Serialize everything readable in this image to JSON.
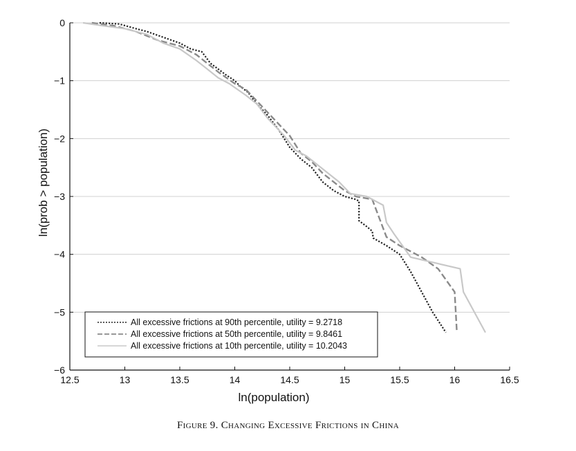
{
  "chart_data": {
    "type": "line",
    "xlabel": "ln(population)",
    "ylabel": "ln(prob > population)",
    "xlim": [
      12.5,
      16.5
    ],
    "ylim": [
      -6,
      0
    ],
    "xticks": [
      "12.5",
      "13",
      "13.5",
      "14",
      "14.5",
      "15",
      "15.5",
      "16",
      "16.5"
    ],
    "xtick_values": [
      12.5,
      13,
      13.5,
      14,
      14.5,
      15,
      15.5,
      16,
      16.5
    ],
    "yticks": [
      "0",
      "−1",
      "−2",
      "−3",
      "−4",
      "−5",
      "−6"
    ],
    "ytick_values": [
      0,
      -1,
      -2,
      -3,
      -4,
      -5,
      -6
    ],
    "grid": "horizontal",
    "legend_position": "bottom-left",
    "series": [
      {
        "name": "All excessive frictions at 90th percentile, utility = 9.2718",
        "style": "dotted",
        "color": "#222222",
        "x": [
          12.77,
          12.95,
          13.1,
          13.2,
          13.35,
          13.5,
          13.6,
          13.7,
          13.78,
          13.85,
          13.92,
          14.0,
          14.05,
          14.12,
          14.2,
          14.3,
          14.4,
          14.5,
          14.6,
          14.7,
          14.8,
          14.9,
          15.0,
          15.1,
          15.13,
          15.13,
          15.2,
          15.25,
          15.26,
          15.38,
          15.5,
          15.6,
          15.7,
          15.8,
          15.92
        ],
        "y": [
          0,
          -0.02,
          -0.1,
          -0.15,
          -0.25,
          -0.35,
          -0.45,
          -0.5,
          -0.7,
          -0.8,
          -0.9,
          -1.0,
          -1.1,
          -1.2,
          -1.4,
          -1.6,
          -1.85,
          -2.15,
          -2.35,
          -2.5,
          -2.75,
          -2.9,
          -3.0,
          -3.05,
          -3.08,
          -3.42,
          -3.52,
          -3.6,
          -3.72,
          -3.85,
          -4.0,
          -4.3,
          -4.65,
          -5.0,
          -5.35
        ]
      },
      {
        "name": "All excessive frictions at 50th percentile, utility = 9.8461",
        "style": "dashed",
        "color": "#8a8a8a",
        "x": [
          12.7,
          12.9,
          13.1,
          13.3,
          13.5,
          13.65,
          13.75,
          13.85,
          14.0,
          14.1,
          14.2,
          14.35,
          14.5,
          14.6,
          14.7,
          14.8,
          14.9,
          15.0,
          15.1,
          15.25,
          15.3,
          15.38,
          15.5,
          15.7,
          15.85,
          16.0,
          16.02
        ],
        "y": [
          0,
          -0.05,
          -0.15,
          -0.3,
          -0.4,
          -0.55,
          -0.7,
          -0.85,
          -1.05,
          -1.15,
          -1.35,
          -1.65,
          -1.95,
          -2.25,
          -2.4,
          -2.6,
          -2.75,
          -2.9,
          -3.0,
          -3.05,
          -3.3,
          -3.7,
          -3.85,
          -4.05,
          -4.25,
          -4.65,
          -5.35
        ]
      },
      {
        "name": "All excessive frictions at 10th percentile, utility = 10.2043",
        "style": "solid",
        "color": "#c8c8c8",
        "x": [
          12.62,
          12.8,
          13.0,
          13.2,
          13.35,
          13.5,
          13.65,
          13.75,
          13.85,
          13.95,
          14.1,
          14.2,
          14.3,
          14.45,
          14.55,
          14.65,
          14.75,
          14.85,
          14.95,
          15.05,
          15.2,
          15.35,
          15.38,
          15.45,
          15.6,
          16.05,
          16.08,
          16.28
        ],
        "y": [
          0,
          -0.05,
          -0.1,
          -0.2,
          -0.35,
          -0.45,
          -0.65,
          -0.8,
          -0.95,
          -1.05,
          -1.25,
          -1.4,
          -1.65,
          -1.95,
          -2.2,
          -2.3,
          -2.45,
          -2.6,
          -2.75,
          -2.95,
          -3.0,
          -3.15,
          -3.45,
          -3.65,
          -4.05,
          -4.25,
          -4.65,
          -5.35
        ]
      }
    ]
  },
  "caption": {
    "prefix": "Figure 9. ",
    "text": "Changing Excessive Frictions in China"
  }
}
